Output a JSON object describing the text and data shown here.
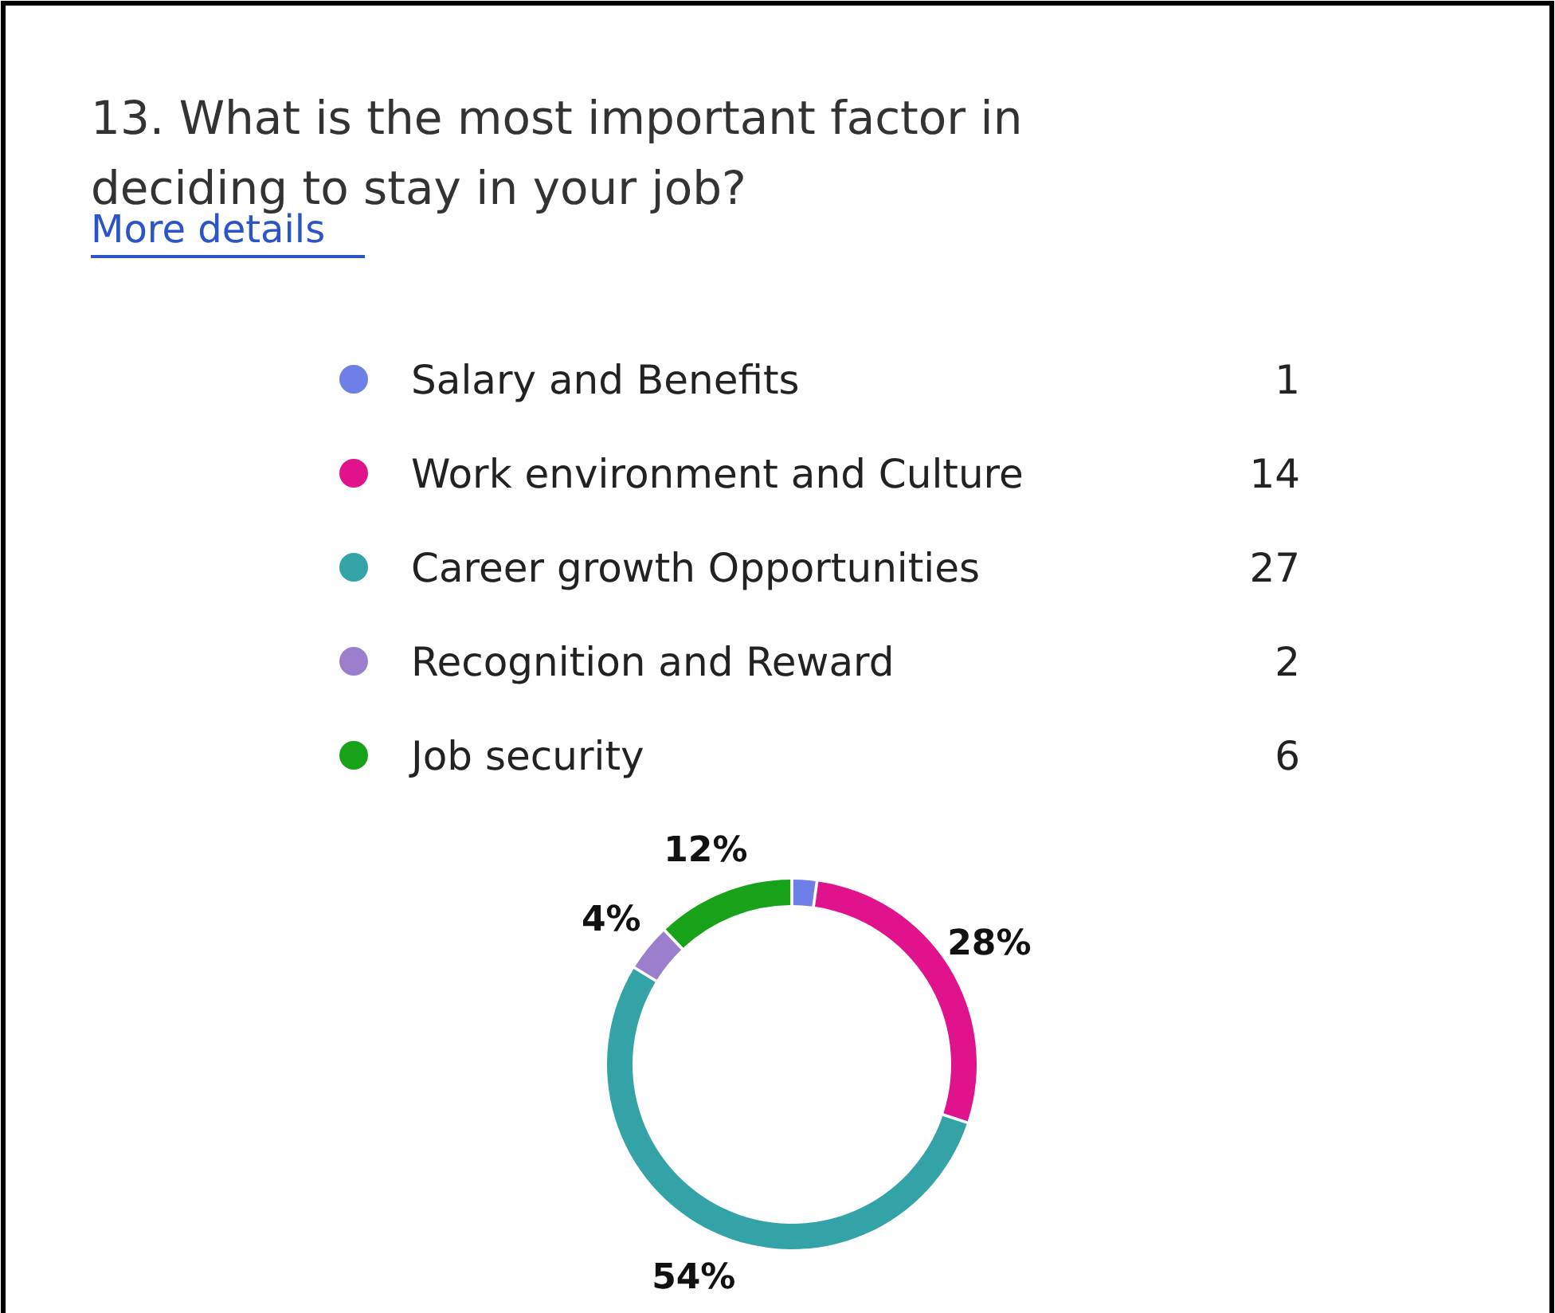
{
  "chart_data": {
    "type": "donut",
    "title": "13. What is the most important factor in deciding to stay in your job?",
    "annotations": [
      "More details",
      {
        "text": "1",
        "x": "Salary and Benefits"
      },
      {
        "text": "14",
        "x": "Work environment and Culture"
      },
      {
        "text": "27",
        "x": "Career growth Opportunities"
      },
      {
        "text": "2",
        "x": "Recognition and Reward"
      },
      {
        "text": "6",
        "x": "Job security"
      }
    ],
    "categories": [
      "Salary and Benefits",
      "Work environment and Culture",
      "Career growth Opportunities",
      "Recognition and Reward",
      "Job security"
    ],
    "values": [
      2,
      28,
      54,
      4,
      12
    ],
    "colors": [
      "#6f7fe8",
      "#e0138c",
      "#33a3a8",
      "#9b7fcc",
      "#17a21a"
    ],
    "value_labels": [
      null,
      "28%",
      "54%",
      "4%",
      "12%"
    ],
    "legend": "top"
  }
}
